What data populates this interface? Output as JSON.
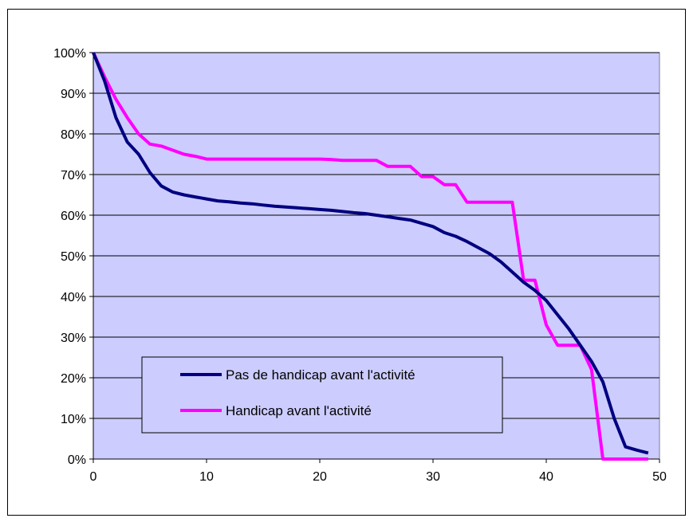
{
  "chart_data": {
    "type": "line",
    "title": "",
    "xlabel": "",
    "ylabel": "",
    "xlim": [
      0,
      50
    ],
    "ylim": [
      0,
      1
    ],
    "x_ticks": [
      0,
      10,
      20,
      30,
      40,
      50
    ],
    "y_ticks": [
      0,
      0.1,
      0.2,
      0.3,
      0.4,
      0.5,
      0.6,
      0.7,
      0.8,
      0.9,
      1.0
    ],
    "x_tick_labels": [
      "0",
      "10",
      "20",
      "30",
      "40",
      "50"
    ],
    "y_tick_labels": [
      "0%",
      "10%",
      "20%",
      "30%",
      "40%",
      "50%",
      "60%",
      "70%",
      "80%",
      "90%",
      "100%"
    ],
    "grid": "horizontal",
    "plot_background": "#ccccff",
    "legend_position": "lower-left",
    "series": [
      {
        "name": "Pas de handicap avant l'activité",
        "color": "#000080",
        "x": [
          0,
          1,
          2,
          3,
          4,
          5,
          6,
          7,
          8,
          9,
          10,
          11,
          12,
          13,
          14,
          15,
          16,
          17,
          18,
          19,
          20,
          21,
          22,
          23,
          24,
          25,
          26,
          27,
          28,
          29,
          30,
          31,
          32,
          33,
          34,
          35,
          36,
          37,
          38,
          39,
          40,
          41,
          42,
          43,
          44,
          45,
          46,
          47,
          48,
          49
        ],
        "y": [
          1.0,
          0.93,
          0.84,
          0.78,
          0.75,
          0.705,
          0.672,
          0.657,
          0.65,
          0.645,
          0.64,
          0.635,
          0.633,
          0.63,
          0.628,
          0.625,
          0.622,
          0.62,
          0.618,
          0.616,
          0.614,
          0.612,
          0.609,
          0.606,
          0.604,
          0.6,
          0.596,
          0.592,
          0.588,
          0.58,
          0.572,
          0.557,
          0.548,
          0.535,
          0.52,
          0.505,
          0.485,
          0.46,
          0.435,
          0.415,
          0.39,
          0.355,
          0.32,
          0.28,
          0.24,
          0.19,
          0.1,
          0.03,
          0.022,
          0.015
        ]
      },
      {
        "name": "Handicap avant l'activité",
        "color": "#ff00ff",
        "x": [
          0,
          1,
          2,
          3,
          4,
          5,
          6,
          7,
          8,
          9,
          10,
          20,
          21,
          22,
          25,
          26,
          28,
          29,
          30,
          31,
          32,
          33,
          35,
          37,
          38,
          38.5,
          39,
          40,
          41,
          42,
          43,
          44,
          45,
          46,
          47,
          48,
          49
        ],
        "y": [
          1.0,
          0.94,
          0.885,
          0.84,
          0.8,
          0.775,
          0.77,
          0.76,
          0.75,
          0.745,
          0.738,
          0.738,
          0.737,
          0.735,
          0.735,
          0.72,
          0.72,
          0.695,
          0.695,
          0.675,
          0.675,
          0.632,
          0.632,
          0.632,
          0.44,
          0.44,
          0.44,
          0.33,
          0.28,
          0.28,
          0.28,
          0.22,
          0.0,
          0.0,
          0.0,
          0.0,
          0.0
        ]
      }
    ]
  }
}
